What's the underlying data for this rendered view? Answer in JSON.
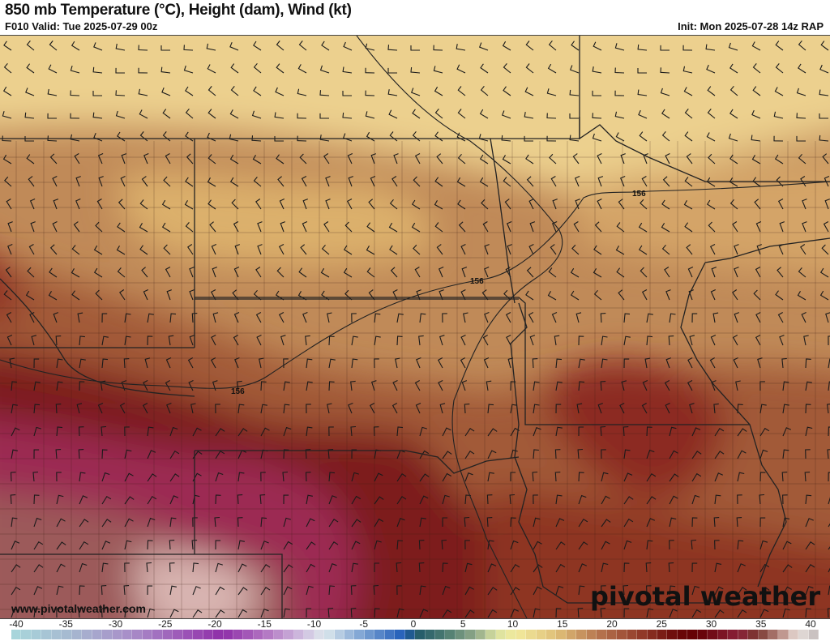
{
  "header": {
    "title": "850 mb Temperature (°C), Height (dam), Wind (kt)",
    "valid": "F010 Valid: Tue 2025-07-29 00z",
    "init": "Init: Mon 2025-07-28 14z RAP"
  },
  "map": {
    "contour_labels": [
      "156",
      "156",
      "156"
    ],
    "field_colors": {
      "north": "#ecd08e",
      "central": "#b97a4c",
      "south": "#7d1a1e",
      "magenta": "#9c2a52",
      "plum": "#9c5a5a",
      "pink": "#d8b4b0"
    }
  },
  "footer": {
    "website": "www.pivotalweather.com",
    "logo": "pivotal weather"
  },
  "colorbar": {
    "ticks": [
      "-40",
      "-35",
      "-30",
      "-25",
      "-20",
      "-15",
      "-10",
      "-5",
      "0",
      "5",
      "10",
      "15",
      "20",
      "25",
      "30",
      "35",
      "40"
    ],
    "min": -40,
    "max": 40,
    "stops": [
      [
        -40,
        "#a8d8dc"
      ],
      [
        -34,
        "#a6b8d0"
      ],
      [
        -28,
        "#a88cc8"
      ],
      [
        -22,
        "#9a4cb4"
      ],
      [
        -19,
        "#8e2ea8"
      ],
      [
        -15,
        "#b070c0"
      ],
      [
        -11,
        "#d0c0e0"
      ],
      [
        -9,
        "#dde8ec"
      ],
      [
        -6,
        "#8fb0d8"
      ],
      [
        -1,
        "#1f5cb8"
      ],
      [
        0,
        "#20586a"
      ],
      [
        3,
        "#4a7a70"
      ],
      [
        6,
        "#90a888"
      ],
      [
        8,
        "#d8e0a0"
      ],
      [
        10,
        "#f2ea9c"
      ],
      [
        14,
        "#e0c078"
      ],
      [
        18,
        "#b87850"
      ],
      [
        22,
        "#96402c"
      ],
      [
        26,
        "#6a0808"
      ],
      [
        28,
        "#640004"
      ],
      [
        32,
        "#8a2038"
      ],
      [
        34,
        "#7a3830"
      ],
      [
        36,
        "#b08078"
      ],
      [
        37,
        "#d0b0a8"
      ],
      [
        38,
        "#e8e0dc"
      ],
      [
        40,
        "#c0b8b8"
      ]
    ]
  }
}
